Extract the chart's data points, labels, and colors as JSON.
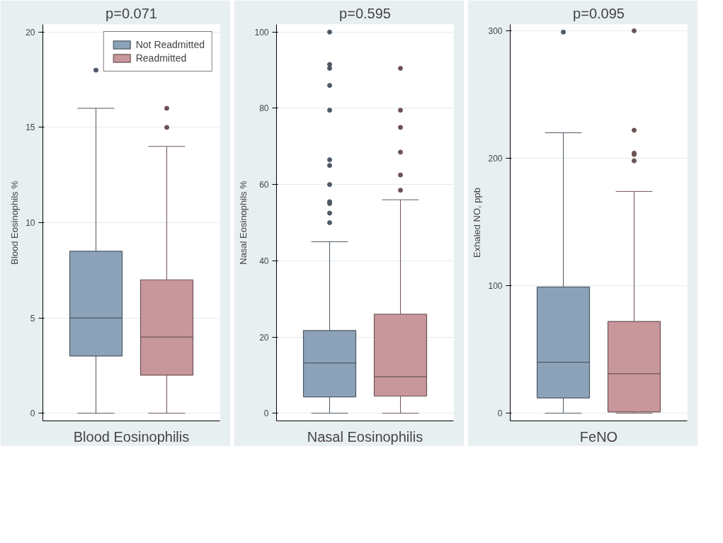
{
  "chart_data": [
    {
      "type": "box",
      "title": "p=0.071",
      "ylabel": "Blood Eosinophils %",
      "categories": [
        null
      ],
      "ylim": [
        -0.4,
        20.4
      ],
      "yticks": [
        0,
        5,
        10,
        15,
        20
      ],
      "grid": "y",
      "legend": "top right",
      "annotations": [
        "Blood Eosinophilis"
      ],
      "series": [
        {
          "name": "Not Readmitted",
          "color": "#8ca2b8",
          "boxes": [
            {
              "low": 0,
              "q1": 3,
              "median": 5,
              "q3": 8.5,
              "high": 16,
              "outliers": [
                18
              ]
            }
          ]
        },
        {
          "name": "Readmitted",
          "color": "#c8979b",
          "boxes": [
            {
              "low": 0,
              "q1": 2,
              "median": 4,
              "q3": 7,
              "high": 14,
              "outliers": [
                15,
                16
              ]
            }
          ]
        }
      ]
    },
    {
      "type": "box",
      "title": "p=0.595",
      "ylabel": "Nasal Eosinophils %",
      "categories": [
        null
      ],
      "ylim": [
        -2,
        102
      ],
      "yticks": [
        0,
        20,
        40,
        60,
        80,
        100
      ],
      "grid": "y",
      "annotations": [
        "Nasal Eosinophilis"
      ],
      "series": [
        {
          "color": "#8ca2b8",
          "boxes": [
            {
              "low": 0,
              "q1": 4.3,
              "median": 13.2,
              "q3": 21.7,
              "high": 45,
              "outliers": [
                50,
                52.5,
                55,
                55.5,
                60,
                65,
                66.5,
                79.5,
                86,
                90.5,
                91.5,
                100
              ]
            }
          ]
        },
        {
          "color": "#c8979b",
          "boxes": [
            {
              "low": 0,
              "q1": 4.5,
              "median": 9.6,
              "q3": 26,
              "high": 56,
              "outliers": [
                58.5,
                62.5,
                68.5,
                75,
                79.5,
                90.5
              ]
            }
          ]
        }
      ]
    },
    {
      "type": "box",
      "title": "p=0.095",
      "ylabel": "Exhaled NO, ppb",
      "categories": [
        null
      ],
      "ylim": [
        -6,
        305
      ],
      "yticks": [
        0,
        100,
        200,
        300
      ],
      "grid": "y",
      "annotations": [
        "FeNO"
      ],
      "series": [
        {
          "color": "#8ca2b8",
          "boxes": [
            {
              "low": 0,
              "q1": 12,
              "median": 40,
              "q3": 99,
              "high": 220,
              "outliers": [
                299
              ]
            }
          ]
        },
        {
          "color": "#c8979b",
          "boxes": [
            {
              "low": 0,
              "q1": 1,
              "median": 31,
              "q3": 72,
              "high": 174,
              "outliers": [
                198,
                203,
                204,
                222,
                300
              ]
            }
          ]
        }
      ]
    }
  ]
}
